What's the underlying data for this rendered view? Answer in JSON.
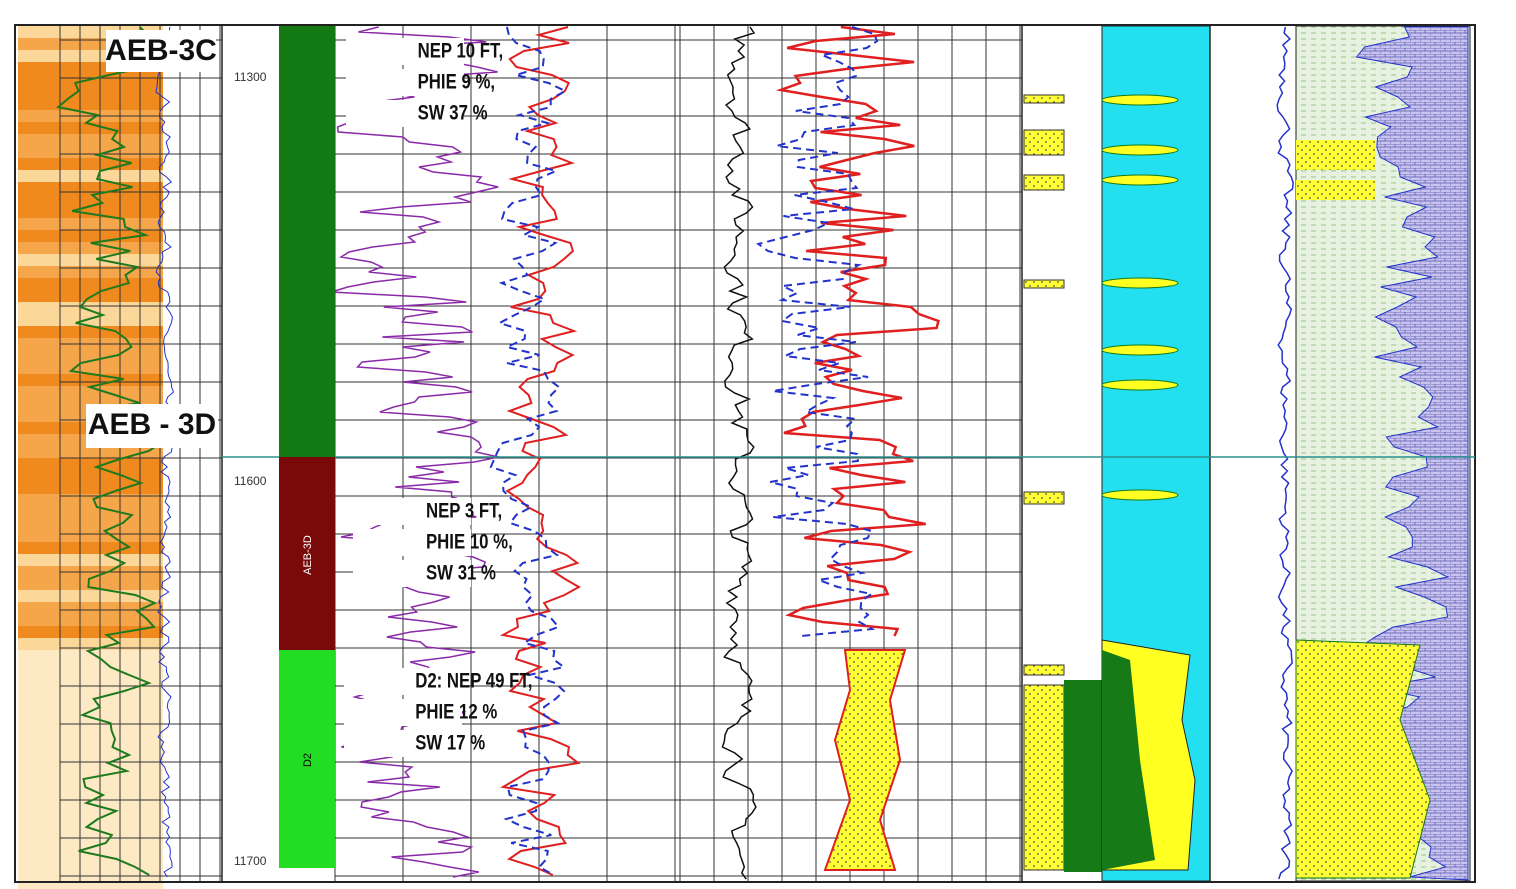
{
  "wells": [
    "AEB-3C",
    "AEB - 3D"
  ],
  "depth_ticks": [
    "11300",
    "11600",
    "11700"
  ],
  "zones": [
    "AEB-3D",
    "D2"
  ],
  "annotations": [
    [
      "NEP 10 FT,",
      "PHIE 9 %,",
      "SW  37 %"
    ],
    [
      "NEP 3 FT,",
      "PHIE  10 %,",
      "SW  31 %"
    ],
    [
      "D2: NEP 49 FT,",
      "PHIE  12 %",
      "SW   17 %"
    ]
  ]
}
